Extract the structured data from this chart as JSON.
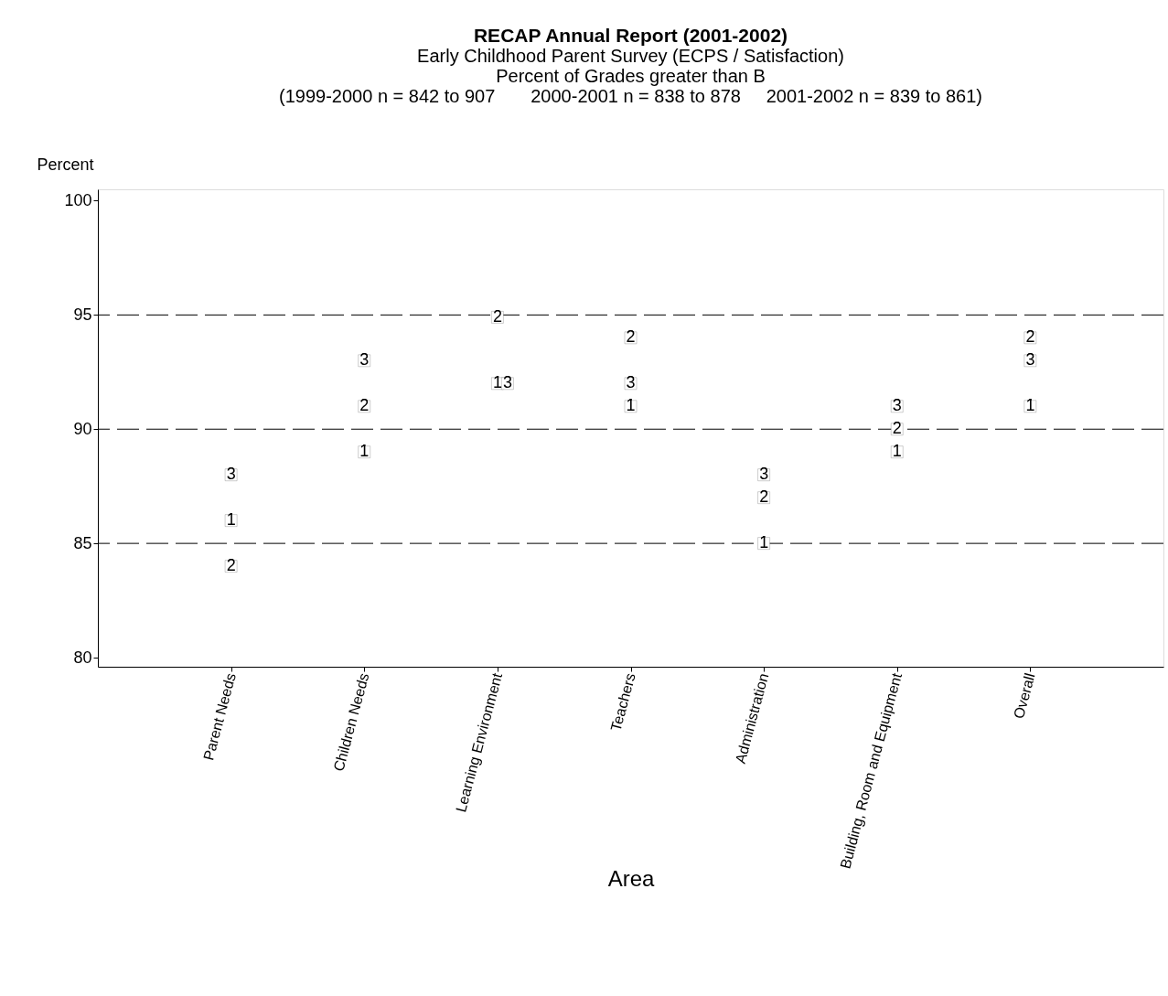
{
  "chart_data": {
    "type": "scatter",
    "title": "RECAP Annual Report (2001-2002)",
    "subtitle": "Early Childhood Parent Survey (ECPS / Satisfaction)\nPercent of Grades greater than B\n(1999-2000 n = 842 to 907       2000-2001 n = 838 to 878     2001-2002 n = 839 to 861)",
    "xlabel": "Area",
    "ylabel": "Percent",
    "categories": [
      "Parent Needs",
      "Children Needs",
      "Learning Environment",
      "Teachers",
      "Administration",
      "Building, Room and Equipment",
      "Overall"
    ],
    "series": [
      {
        "name": "1",
        "color": "#000000",
        "values": [
          86,
          89,
          92,
          91,
          85,
          89,
          91
        ]
      },
      {
        "name": "2",
        "color": "#000000",
        "values": [
          84,
          91,
          94.9,
          94,
          87,
          90,
          94
        ]
      },
      {
        "name": "3",
        "color": "#000000",
        "values": [
          88,
          93,
          92,
          92,
          88,
          91,
          93
        ]
      }
    ],
    "ylim": [
      79.6,
      100.5
    ],
    "yticks": [
      80,
      85,
      90,
      95,
      100
    ],
    "ref_lines": [
      {
        "axis": "y",
        "value": 85,
        "color": "#000000",
        "line_style": "dashed"
      },
      {
        "axis": "y",
        "value": 90,
        "color": "#000000",
        "line_style": "dashed"
      },
      {
        "axis": "y",
        "value": 95,
        "color": "#000000",
        "line_style": "dashed"
      }
    ],
    "grid": false
  }
}
